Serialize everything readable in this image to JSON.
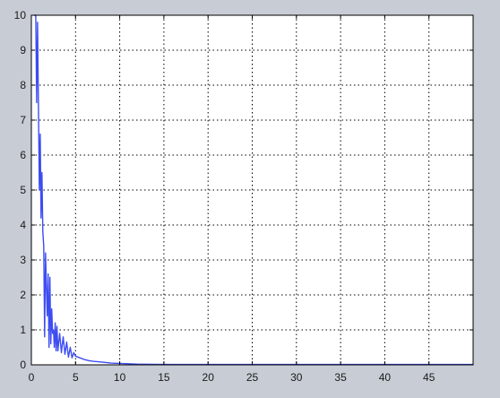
{
  "chart_data": {
    "type": "line",
    "title": "",
    "xlabel": "",
    "ylabel": "",
    "xlim": [
      0,
      50
    ],
    "ylim": [
      0,
      10
    ],
    "grid": true,
    "x_ticks": [
      "0",
      "5",
      "10",
      "15",
      "20",
      "25",
      "30",
      "35",
      "40",
      "45"
    ],
    "y_ticks": [
      "0",
      "1",
      "2",
      "3",
      "4",
      "5",
      "6",
      "7",
      "8",
      "9",
      "10"
    ],
    "colors": {
      "line": "#3d4cf2",
      "grid": "#000000",
      "axes_bg": "#ffffff",
      "figure_bg": "#c8ccd4"
    },
    "series": [
      {
        "x": [
          0.3,
          0.4,
          0.5,
          0.6,
          0.7,
          0.8,
          0.9,
          1.0,
          1.1,
          1.2,
          1.3,
          1.4,
          1.5,
          1.6,
          1.7,
          1.8,
          1.9,
          2.0,
          2.1,
          2.2,
          2.3,
          2.4,
          2.5,
          2.6,
          2.7,
          2.8,
          2.9,
          3.0,
          3.2,
          3.4,
          3.6,
          3.8,
          4.0,
          4.2,
          4.4,
          4.6,
          4.8,
          5.0,
          5.5,
          6.0,
          6.5,
          7.0,
          8.0,
          9.0,
          10.0,
          11.0,
          12.0,
          14.0,
          16.0,
          20.0,
          25.0,
          30.0,
          35.0,
          40.0,
          45.0,
          50.0
        ],
        "y": [
          10,
          10,
          10,
          7.5,
          9.8,
          7.4,
          5.0,
          6.6,
          4.2,
          5.5,
          3.8,
          3.4,
          0.8,
          3.2,
          2.2,
          1.4,
          2.6,
          0.5,
          2.5,
          0.6,
          1.6,
          0.9,
          1.0,
          0.5,
          1.2,
          0.4,
          1.1,
          0.4,
          0.9,
          0.35,
          0.8,
          0.3,
          0.65,
          0.22,
          0.5,
          0.2,
          0.35,
          0.25,
          0.2,
          0.15,
          0.12,
          0.1,
          0.08,
          0.05,
          0.04,
          0.03,
          0.02,
          0.015,
          0.01,
          0.01,
          0.01,
          0.01,
          0.01,
          0.01,
          0.01,
          0.01
        ]
      }
    ]
  }
}
